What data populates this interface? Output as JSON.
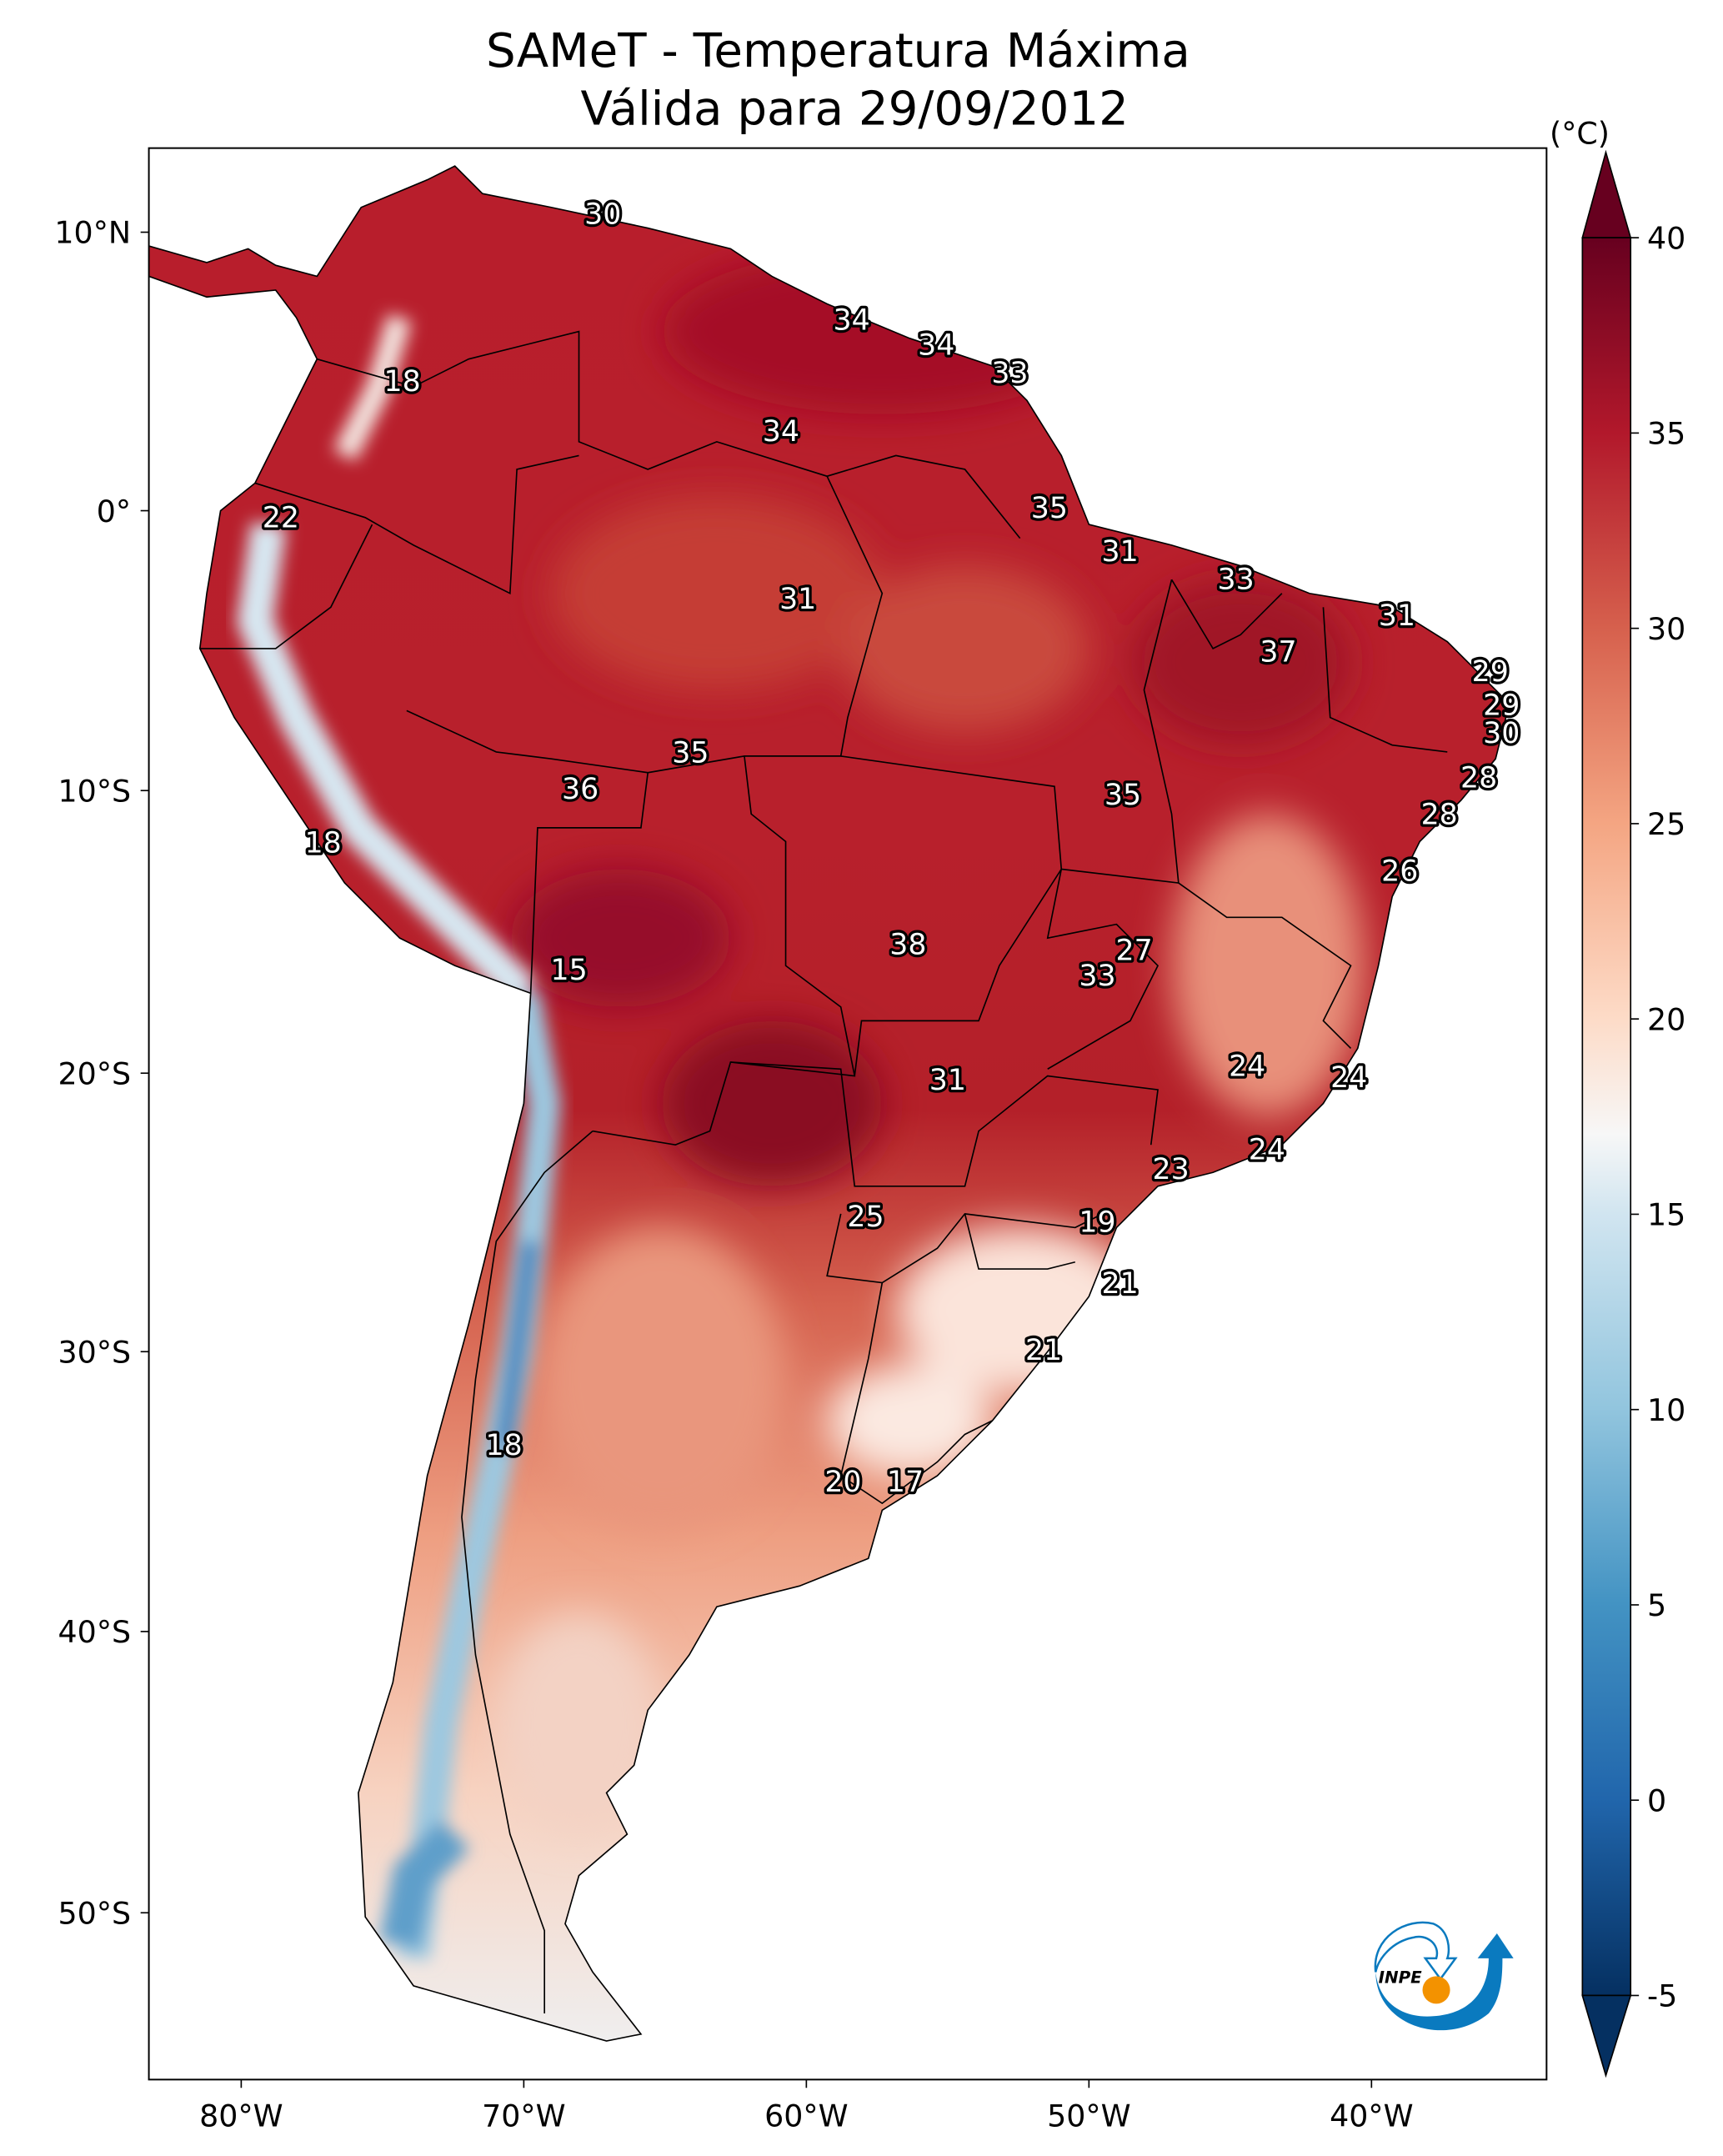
{
  "title": {
    "line1": "SAMeT - Temperatura Máxima",
    "line2": "Válida para 29/09/2012"
  },
  "map": {
    "lon_ticks": [
      {
        "value": -80,
        "label": "80°W"
      },
      {
        "value": -70,
        "label": "70°W"
      },
      {
        "value": -60,
        "label": "60°W"
      },
      {
        "value": -50,
        "label": "50°W"
      },
      {
        "value": -40,
        "label": "40°W"
      }
    ],
    "lat_ticks": [
      {
        "value": 10,
        "label": "10°N"
      },
      {
        "value": 0,
        "label": "0°"
      },
      {
        "value": -10,
        "label": "10°S"
      },
      {
        "value": -20,
        "label": "20°S"
      },
      {
        "value": -30,
        "label": "30°S"
      },
      {
        "value": -40,
        "label": "40°S"
      },
      {
        "value": -50,
        "label": "50°S"
      }
    ],
    "station_labels": [
      {
        "text": "30",
        "lon": -67.2,
        "lat": 10.7
      },
      {
        "text": "18",
        "lon": -74.3,
        "lat": 4.7
      },
      {
        "text": "22",
        "lon": -78.6,
        "lat": -0.2
      },
      {
        "text": "34",
        "lon": -58.4,
        "lat": 6.9
      },
      {
        "text": "34",
        "lon": -55.4,
        "lat": 6.0
      },
      {
        "text": "33",
        "lon": -52.8,
        "lat": 5.0
      },
      {
        "text": "34",
        "lon": -60.9,
        "lat": 2.9
      },
      {
        "text": "35",
        "lon": -51.4,
        "lat": 0.15
      },
      {
        "text": "31",
        "lon": -48.9,
        "lat": -1.4
      },
      {
        "text": "31",
        "lon": -60.3,
        "lat": -3.1
      },
      {
        "text": "33",
        "lon": -44.8,
        "lat": -2.4
      },
      {
        "text": "31",
        "lon": -39.1,
        "lat": -3.7
      },
      {
        "text": "37",
        "lon": -43.3,
        "lat": -5.0
      },
      {
        "text": "29",
        "lon": -35.8,
        "lat": -5.7
      },
      {
        "text": "29",
        "lon": -35.4,
        "lat": -6.9
      },
      {
        "text": "30",
        "lon": -35.4,
        "lat": -7.9
      },
      {
        "text": "28",
        "lon": -36.2,
        "lat": -9.5
      },
      {
        "text": "35",
        "lon": -64.1,
        "lat": -8.6
      },
      {
        "text": "36",
        "lon": -68.0,
        "lat": -9.9
      },
      {
        "text": "35",
        "lon": -48.8,
        "lat": -10.1
      },
      {
        "text": "28",
        "lon": -37.6,
        "lat": -10.8
      },
      {
        "text": "18",
        "lon": -77.1,
        "lat": -11.8
      },
      {
        "text": "26",
        "lon": -39.0,
        "lat": -12.8
      },
      {
        "text": "15",
        "lon": -68.4,
        "lat": -16.3
      },
      {
        "text": "38",
        "lon": -56.4,
        "lat": -15.4
      },
      {
        "text": "27",
        "lon": -48.4,
        "lat": -15.6
      },
      {
        "text": "33",
        "lon": -49.7,
        "lat": -16.5
      },
      {
        "text": "24",
        "lon": -44.4,
        "lat": -19.7
      },
      {
        "text": "24",
        "lon": -40.8,
        "lat": -20.1
      },
      {
        "text": "31",
        "lon": -55.0,
        "lat": -20.2
      },
      {
        "text": "24",
        "lon": -43.7,
        "lat": -22.7
      },
      {
        "text": "23",
        "lon": -47.1,
        "lat": -23.4
      },
      {
        "text": "25",
        "lon": -57.9,
        "lat": -25.1
      },
      {
        "text": "19",
        "lon": -49.7,
        "lat": -25.3
      },
      {
        "text": "21",
        "lon": -48.9,
        "lat": -27.5
      },
      {
        "text": "21",
        "lon": -51.6,
        "lat": -29.9
      },
      {
        "text": "18",
        "lon": -70.7,
        "lat": -33.3
      },
      {
        "text": "20",
        "lon": -58.7,
        "lat": -34.6
      },
      {
        "text": "17",
        "lon": -56.5,
        "lat": -34.6
      }
    ]
  },
  "colorbar": {
    "unit": "(°C)",
    "min": -5,
    "max": 40,
    "extend": "both",
    "ticks": [
      "40",
      "35",
      "30",
      "25",
      "20",
      "15",
      "10",
      "5",
      "0",
      "-5"
    ],
    "colors": {
      "40": "#67001f",
      "35": "#b2182b",
      "30": "#d6604d",
      "25": "#f4a582",
      "20": "#fddbc7",
      "17": "#f7f7f7",
      "15": "#d1e5f0",
      "10": "#92c5de",
      "5": "#4393c3",
      "0": "#2166ac",
      "-5": "#053061"
    }
  },
  "logo": {
    "text": "INPE",
    "blue": "#0a7abf",
    "orange": "#f39200"
  }
}
